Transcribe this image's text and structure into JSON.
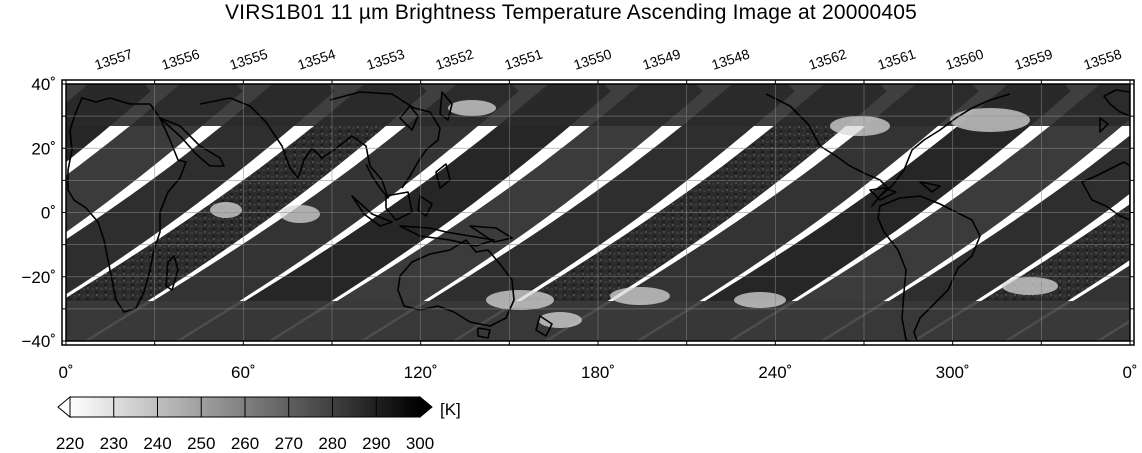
{
  "title": "VIRS1B01 11 µm Brightness Temperature Ascending Image at 20000405",
  "orbit_labels": [
    "13557",
    "13556",
    "13555",
    "13554",
    "13553",
    "13552",
    "13551",
    "13550",
    "13549",
    "13548",
    "13562",
    "13561",
    "13560",
    "13559",
    "13558"
  ],
  "longitude_ticks": [
    "0˚",
    "60˚",
    "120˚",
    "180˚",
    "240˚",
    "300˚",
    "0˚"
  ],
  "latitude_ticks": [
    "40˚",
    "20˚",
    "0˚",
    "−20˚",
    "−40˚"
  ],
  "map": {
    "lon_range": [
      0,
      360
    ],
    "lat_range": [
      -40,
      40
    ],
    "gridlines": true
  },
  "colorbar": {
    "unit_label": "[K]",
    "ticks": [
      "220",
      "230",
      "240",
      "250",
      "260",
      "270",
      "280",
      "290",
      "300"
    ],
    "range": [
      220,
      300
    ],
    "color_low": "#ffffff",
    "color_high": "#000000"
  }
}
